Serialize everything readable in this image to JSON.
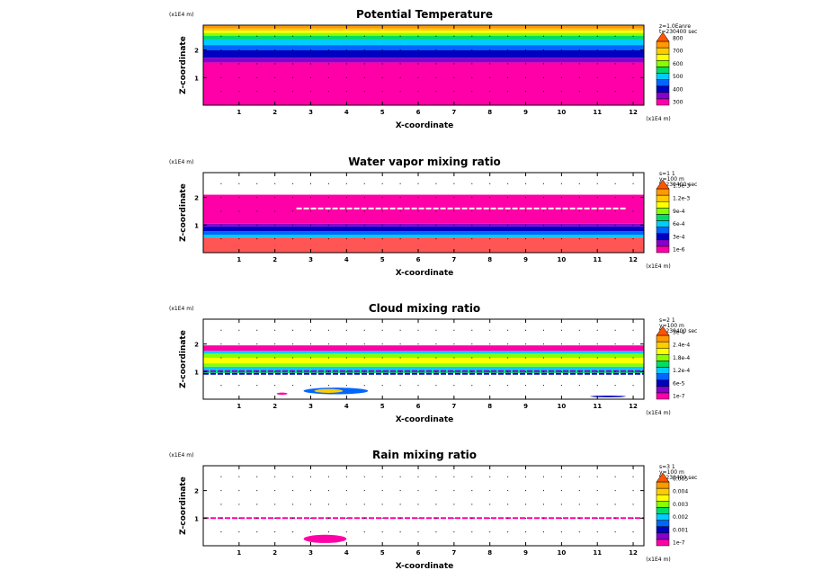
{
  "charts": [
    {
      "title": "Potential Temperature",
      "xlabel": "X-coordinate",
      "ylabel": "Z-coordinate",
      "x_unit": "(x1E4 m)",
      "z_unit": "(x1E4 m)",
      "info": [
        "z=1.0Eanre",
        "t=230400 sec"
      ],
      "legend_labels": [
        "300",
        "400",
        "500",
        "600",
        "700",
        "800"
      ],
      "legend_colors": [
        "#ff00a8",
        "#8800cc",
        "#0000c0",
        "#0066ff",
        "#00ccff",
        "#00dd66",
        "#88ff00",
        "#ffff00",
        "#ffcc00",
        "#ff9900",
        "#ff5500"
      ],
      "bands": [
        {
          "z0": 0.0,
          "z1": 1.55,
          "color": "#ff00a8"
        },
        {
          "z0": 1.55,
          "z1": 1.72,
          "color": "#8800cc"
        },
        {
          "z0": 1.72,
          "z1": 2.0,
          "color": "#0000c0"
        },
        {
          "z0": 2.0,
          "z1": 2.18,
          "color": "#0066ff"
        },
        {
          "z0": 2.18,
          "z1": 2.38,
          "color": "#00ccff"
        },
        {
          "z0": 2.38,
          "z1": 2.52,
          "color": "#00dd66"
        },
        {
          "z0": 2.52,
          "z1": 2.62,
          "color": "#88ff00"
        },
        {
          "z0": 2.62,
          "z1": 2.7,
          "color": "#ffff00"
        },
        {
          "z0": 2.7,
          "z1": 2.78,
          "color": "#ffcc00"
        },
        {
          "z0": 2.78,
          "z1": 2.88,
          "color": "#ff9900"
        }
      ],
      "streaks": [],
      "blobs": []
    },
    {
      "title": "Water vapor mixing ratio",
      "xlabel": "X-coordinate",
      "ylabel": "Z-coordinate",
      "x_unit": "(x1E4 m)",
      "z_unit": "(x1E4 m)",
      "info": [
        "s=1 1",
        "y=100 m",
        "t=230400 sec"
      ],
      "legend_labels": [
        "1e-6",
        "3e-4",
        "6e-4",
        "9e-4",
        "1.2e-3",
        "1.5e-3"
      ],
      "legend_colors": [
        "#ff00a8",
        "#8800cc",
        "#0000c0",
        "#0066ff",
        "#00ccff",
        "#00dd66",
        "#88ff00",
        "#ffff00",
        "#ffcc00",
        "#ff9900",
        "#ff5500"
      ],
      "bands": [
        {
          "z0": 0.0,
          "z1": 0.55,
          "color": "#ff5555"
        },
        {
          "z0": 0.55,
          "z1": 0.65,
          "color": "#00ccff"
        },
        {
          "z0": 0.65,
          "z1": 0.78,
          "color": "#0066ff"
        },
        {
          "z0": 0.78,
          "z1": 0.95,
          "color": "#0000c0"
        },
        {
          "z0": 0.95,
          "z1": 1.05,
          "color": "#8800cc"
        },
        {
          "z0": 1.05,
          "z1": 2.1,
          "color": "#ff00a8"
        }
      ],
      "streaks": [
        {
          "x0": 2.6,
          "x1": 11.8,
          "z": 1.6,
          "color": "#ffffff"
        }
      ],
      "blobs": []
    },
    {
      "title": "Cloud mixing ratio",
      "xlabel": "X-coordinate",
      "ylabel": "Z-coordinate",
      "x_unit": "(x1E4 m)",
      "z_unit": "(x1E4 m)",
      "info": [
        "s=2 1",
        "y=100 m",
        "t=230400 sec"
      ],
      "legend_labels": [
        "1e-7",
        "6e-5",
        "1.2e-4",
        "1.8e-4",
        "2.4e-4",
        "3e-4"
      ],
      "legend_colors": [
        "#ff00a8",
        "#8800cc",
        "#0000c0",
        "#0066ff",
        "#00ccff",
        "#00dd66",
        "#88ff00",
        "#ffff00",
        "#ffcc00",
        "#ff9900",
        "#ff5500"
      ],
      "bands": [
        {
          "z0": 0.95,
          "z1": 1.05,
          "color": "#00dd66"
        },
        {
          "z0": 1.05,
          "z1": 1.18,
          "color": "#00ccff"
        },
        {
          "z0": 1.18,
          "z1": 1.3,
          "color": "#88ff00"
        },
        {
          "z0": 1.3,
          "z1": 1.5,
          "color": "#ffff00"
        },
        {
          "z0": 1.5,
          "z1": 1.65,
          "color": "#88ff00"
        },
        {
          "z0": 1.65,
          "z1": 1.75,
          "color": "#00ccff"
        },
        {
          "z0": 1.75,
          "z1": 1.95,
          "color": "#ff00a8"
        }
      ],
      "streaks": [
        {
          "x0": 0.0,
          "x1": 12.3,
          "z": 0.92,
          "color": "#0000c0"
        },
        {
          "x0": 0.0,
          "x1": 12.3,
          "z": 1.02,
          "color": "#8800cc"
        }
      ],
      "blobs": [
        {
          "x": 3.7,
          "z": 0.3,
          "rx": 0.9,
          "rz": 0.12,
          "color": "#0066ff"
        },
        {
          "x": 3.5,
          "z": 0.3,
          "rx": 0.4,
          "rz": 0.07,
          "color": "#ffcc00"
        },
        {
          "x": 2.2,
          "z": 0.2,
          "rx": 0.15,
          "rz": 0.04,
          "color": "#ff00a8"
        },
        {
          "x": 11.3,
          "z": 0.1,
          "rx": 0.5,
          "rz": 0.03,
          "color": "#0000c0"
        }
      ]
    },
    {
      "title": "Rain mixing ratio",
      "xlabel": "X-coordinate",
      "ylabel": "Z-coordinate",
      "x_unit": "(x1E4 m)",
      "z_unit": "(x1E4 m)",
      "info": [
        "s=3 1",
        "y=100 m",
        "t=230400 sec"
      ],
      "legend_labels": [
        "1e-7",
        "0.001",
        "0.002",
        "0.003",
        "0.004",
        "0.005"
      ],
      "legend_colors": [
        "#ff00a8",
        "#8800cc",
        "#0000c0",
        "#0066ff",
        "#00ccff",
        "#00dd66",
        "#88ff00",
        "#ffff00",
        "#ffcc00",
        "#ff9900",
        "#ff5500"
      ],
      "bands": [],
      "streaks": [
        {
          "x0": 0.0,
          "x1": 12.3,
          "z": 1.0,
          "color": "#ff00a8"
        }
      ],
      "blobs": [
        {
          "x": 3.4,
          "z": 0.25,
          "rx": 0.6,
          "rz": 0.15,
          "color": "#ff00a8"
        }
      ]
    }
  ],
  "chart_data": [
    {
      "type": "heatmap",
      "title": "Potential Temperature",
      "xlabel": "X-coordinate",
      "ylabel": "Z-coordinate",
      "xlim": [
        0,
        12.3
      ],
      "ylim": [
        0,
        2.9
      ],
      "xticks": [
        1,
        2,
        3,
        4,
        5,
        6,
        7,
        8,
        9,
        10,
        11,
        12
      ],
      "yticks": [
        1,
        2
      ],
      "legend_levels": [
        300,
        400,
        500,
        600,
        700,
        800
      ]
    },
    {
      "type": "heatmap",
      "title": "Water vapor mixing ratio",
      "xlabel": "X-coordinate",
      "ylabel": "Z-coordinate",
      "xlim": [
        0,
        12.3
      ],
      "ylim": [
        0,
        2.9
      ],
      "xticks": [
        1,
        2,
        3,
        4,
        5,
        6,
        7,
        8,
        9,
        10,
        11,
        12
      ],
      "yticks": [
        1,
        2
      ],
      "legend_levels": [
        "1e-6",
        "3e-4",
        "6e-4",
        "9e-4",
        "1.2e-3",
        "1.5e-3"
      ]
    },
    {
      "type": "heatmap",
      "title": "Cloud mixing ratio",
      "xlabel": "X-coordinate",
      "ylabel": "Z-coordinate",
      "xlim": [
        0,
        12.3
      ],
      "ylim": [
        0,
        2.9
      ],
      "xticks": [
        1,
        2,
        3,
        4,
        5,
        6,
        7,
        8,
        9,
        10,
        11,
        12
      ],
      "yticks": [
        1,
        2
      ],
      "legend_levels": [
        "1e-7",
        "6e-5",
        "1.2e-4",
        "1.8e-4",
        "2.4e-4",
        "3e-4"
      ]
    },
    {
      "type": "heatmap",
      "title": "Rain mixing ratio",
      "xlabel": "X-coordinate",
      "ylabel": "Z-coordinate",
      "xlim": [
        0,
        12.3
      ],
      "ylim": [
        0,
        2.9
      ],
      "xticks": [
        1,
        2,
        3,
        4,
        5,
        6,
        7,
        8,
        9,
        10,
        11,
        12
      ],
      "yticks": [
        1,
        2
      ],
      "legend_levels": [
        "1e-7",
        "0.001",
        "0.002",
        "0.003",
        "0.004",
        "0.005"
      ]
    }
  ]
}
